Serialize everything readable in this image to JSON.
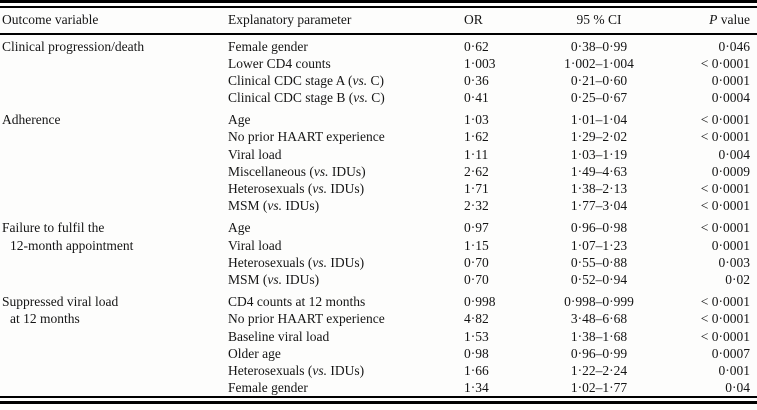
{
  "table": {
    "columns": {
      "outcome": "Outcome variable",
      "param": "Explanatory parameter",
      "or": "OR",
      "ci": "95 % CI",
      "p_italic": "P",
      "p_rest": " value"
    },
    "sections": [
      {
        "outcome_lines": [
          "Clinical progression/death"
        ],
        "rows": [
          {
            "param": "Female gender",
            "or": "0·62",
            "ci": "0·38–0·99",
            "p": "0·046"
          },
          {
            "param": "Lower CD4 counts",
            "or": "1·003",
            "ci": "1·002–1·004",
            "p": "< 0·0001"
          },
          {
            "param": "Clinical CDC stage A (vs. C)",
            "or": "0·36",
            "ci": "0·21–0·60",
            "p": "0·0001"
          },
          {
            "param": "Clinical CDC stage B (vs. C)",
            "or": "0·41",
            "ci": "0·25–0·67",
            "p": "0·0004"
          }
        ]
      },
      {
        "outcome_lines": [
          "Adherence"
        ],
        "rows": [
          {
            "param": "Age",
            "or": "1·03",
            "ci": "1·01–1·04",
            "p": "< 0·0001"
          },
          {
            "param": "No prior HAART experience",
            "or": "1·62",
            "ci": "1·29–2·02",
            "p": "< 0·0001"
          },
          {
            "param": "Viral load",
            "or": "1·11",
            "ci": "1·03–1·19",
            "p": "0·004"
          },
          {
            "param": "Miscellaneous (vs. IDUs)",
            "or": "2·62",
            "ci": "1·49–4·63",
            "p": "0·0009"
          },
          {
            "param": "Heterosexuals (vs. IDUs)",
            "or": "1·71",
            "ci": "1·38–2·13",
            "p": "< 0·0001"
          },
          {
            "param": "MSM (vs. IDUs)",
            "or": "2·32",
            "ci": "1·77–3·04",
            "p": "< 0·0001"
          }
        ]
      },
      {
        "outcome_lines": [
          "Failure to fulfil the",
          "12-month appointment"
        ],
        "rows": [
          {
            "param": "Age",
            "or": "0·97",
            "ci": "0·96–0·98",
            "p": "< 0·0001"
          },
          {
            "param": "Viral load",
            "or": "1·15",
            "ci": "1·07–1·23",
            "p": "0·0001"
          },
          {
            "param": "Heterosexuals (vs. IDUs)",
            "or": "0·70",
            "ci": "0·55–0·88",
            "p": "0·003"
          },
          {
            "param": "MSM (vs. IDUs)",
            "or": "0·70",
            "ci": "0·52–0·94",
            "p": "0·02"
          }
        ]
      },
      {
        "outcome_lines": [
          "Suppressed viral load",
          "at 12 months"
        ],
        "rows": [
          {
            "param": "CD4 counts at 12 months",
            "or": "0·998",
            "ci": "0·998–0·999",
            "p": "< 0·0001"
          },
          {
            "param": "No prior HAART experience",
            "or": "4·82",
            "ci": "3·48–6·68",
            "p": "< 0·0001"
          },
          {
            "param": "Baseline viral load",
            "or": "1·53",
            "ci": "1·38–1·68",
            "p": "< 0·0001"
          },
          {
            "param": "Older age",
            "or": "0·98",
            "ci": "0·96–0·99",
            "p": "0·0007"
          },
          {
            "param": "Heterosexuals (vs. IDUs)",
            "or": "1·66",
            "ci": "1·22–2·24",
            "p": "0·001"
          },
          {
            "param": "Female gender",
            "or": "1·34",
            "ci": "1·02–1·77",
            "p": "0·04"
          }
        ]
      }
    ]
  }
}
